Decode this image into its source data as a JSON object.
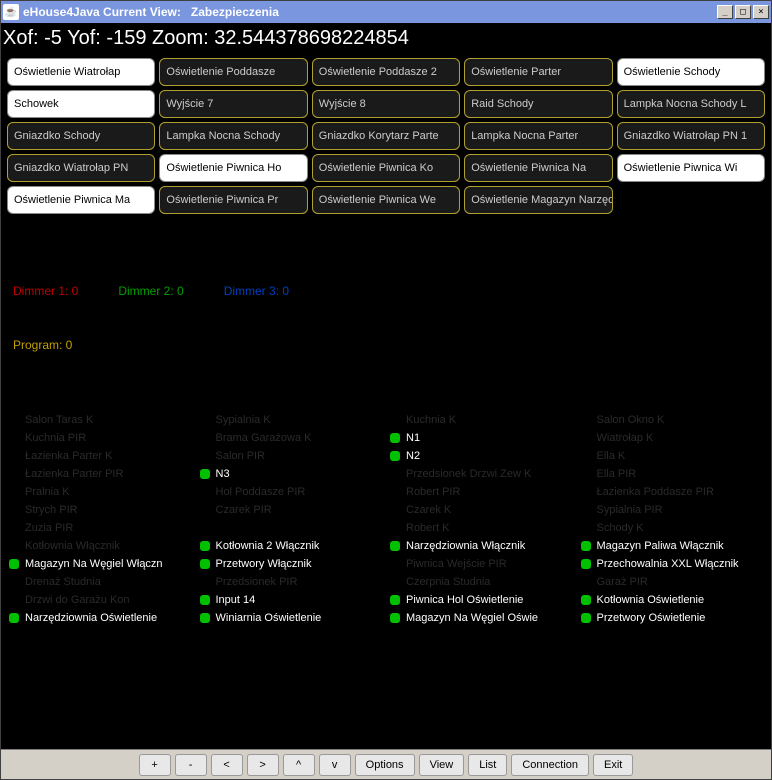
{
  "window": {
    "title_app": "eHouse4Java Current View:",
    "title_view": "Zabezpieczenia",
    "minimize": "_",
    "maximize": "□",
    "close": "×"
  },
  "coords": "Xof: -5 Yof: -159 Zoom: 32.544378698224854",
  "buttons": [
    {
      "label": "Oświetlenie Wiatrołap",
      "on": true
    },
    {
      "label": "Oświetlenie Poddasze",
      "on": false
    },
    {
      "label": "Oświetlenie Poddasze 2",
      "on": false
    },
    {
      "label": "Oświetlenie Parter",
      "on": false
    },
    {
      "label": "Oświetlenie Schody",
      "on": true
    },
    {
      "label": "Schowek",
      "on": true
    },
    {
      "label": "Wyjście 7",
      "on": false
    },
    {
      "label": "Wyjście 8",
      "on": false
    },
    {
      "label": "Raid Schody",
      "on": false
    },
    {
      "label": "Lampka Nocna Schody L",
      "on": false
    },
    {
      "label": "Gniazdko Schody",
      "on": false
    },
    {
      "label": "Lampka Nocna Schody",
      "on": false
    },
    {
      "label": "Gniazdko Korytarz Parte",
      "on": false
    },
    {
      "label": "Lampka Nocna Parter",
      "on": false
    },
    {
      "label": "Gniazdko Wiatrołap PN 1",
      "on": false
    },
    {
      "label": "Gniazdko Wiatrołap PN",
      "on": false
    },
    {
      "label": "Oświetlenie Piwnica Ho",
      "on": true
    },
    {
      "label": "Oświetlenie Piwnica Ko",
      "on": false
    },
    {
      "label": "Oświetlenie Piwnica Na",
      "on": false
    },
    {
      "label": "Oświetlenie Piwnica Wi",
      "on": true
    },
    {
      "label": "Oświetlenie Piwnica Ma",
      "on": true
    },
    {
      "label": "Oświetlenie Piwnica Pr",
      "on": false
    },
    {
      "label": "Oświetlenie Piwnica We",
      "on": false
    },
    {
      "label": "Oświetlenie Magazyn Narzędzia",
      "on": false
    }
  ],
  "dimmers": [
    {
      "label": "Dimmer 1: 0",
      "color": "d-red"
    },
    {
      "label": "Dimmer 2: 0",
      "color": "d-green"
    },
    {
      "label": "Dimmer 3: 0",
      "color": "d-blue"
    }
  ],
  "program": "Program: 0",
  "sensors": {
    "cols": [
      [
        {
          "label": "Salon Taras K",
          "dot": false,
          "dim": true
        },
        {
          "label": "Kuchnia PIR",
          "dot": false,
          "dim": true
        },
        {
          "label": "Łazienka Parter K",
          "dot": false,
          "dim": true
        },
        {
          "label": "Łazienka Parter PIR",
          "dot": false,
          "dim": true
        },
        {
          "label": "Pralnia K",
          "dot": false,
          "dim": true
        },
        {
          "label": "Strych PIR",
          "dot": false,
          "dim": true
        },
        {
          "label": "Zuzia PIR",
          "dot": false,
          "dim": true
        },
        {
          "label": "Kotłownia Włącznik",
          "dot": false,
          "dim": true
        },
        {
          "label": "Magazyn Na Węgiel Włączn",
          "dot": true,
          "dim": false
        },
        {
          "label": "Drenaż Studnia",
          "dot": false,
          "dim": true
        },
        {
          "label": "Drzwi do Garażu Kon",
          "dot": false,
          "dim": true
        },
        {
          "label": "Narzędziownia Oświetlenie",
          "dot": true,
          "dim": false
        }
      ],
      [
        {
          "label": "Sypialnia K",
          "dot": false,
          "dim": true
        },
        {
          "label": "Brama Garażowa K",
          "dot": false,
          "dim": true
        },
        {
          "label": "Salon PIR",
          "dot": false,
          "dim": true
        },
        {
          "label": "N3",
          "dot": true,
          "dim": false
        },
        {
          "label": "Hol Poddasze PIR",
          "dot": false,
          "dim": true
        },
        {
          "label": "Czarek PIR",
          "dot": false,
          "dim": true
        },
        {
          "label": "",
          "dot": false,
          "dim": true
        },
        {
          "label": "Kotłownia 2 Włącznik",
          "dot": true,
          "dim": false
        },
        {
          "label": "Przetwory Włącznik",
          "dot": true,
          "dim": false
        },
        {
          "label": "Przedsionek PIR",
          "dot": false,
          "dim": true
        },
        {
          "label": "Input 14",
          "dot": true,
          "dim": false
        },
        {
          "label": "Winiarnia Oświetlenie",
          "dot": true,
          "dim": false
        }
      ],
      [
        {
          "label": "Kuchnia K",
          "dot": false,
          "dim": true
        },
        {
          "label": "N1",
          "dot": true,
          "dim": false
        },
        {
          "label": "N2",
          "dot": true,
          "dim": false
        },
        {
          "label": "Przedsionek Drzwi Zew K",
          "dot": false,
          "dim": true
        },
        {
          "label": "Robert PIR",
          "dot": false,
          "dim": true
        },
        {
          "label": "Czarek K",
          "dot": false,
          "dim": true
        },
        {
          "label": "Robert K",
          "dot": false,
          "dim": true
        },
        {
          "label": "Narzędziownia Włącznik",
          "dot": true,
          "dim": false
        },
        {
          "label": "Piwnica Wejście PIR",
          "dot": false,
          "dim": true
        },
        {
          "label": "Czerpnia Studnia",
          "dot": false,
          "dim": true
        },
        {
          "label": "Piwnica Hol Oświetlenie",
          "dot": true,
          "dim": false
        },
        {
          "label": "Magazyn Na Węgiel Oświe",
          "dot": true,
          "dim": false
        }
      ],
      [
        {
          "label": "Salon Okno K",
          "dot": false,
          "dim": true
        },
        {
          "label": "Wiatrołap K",
          "dot": false,
          "dim": true
        },
        {
          "label": "Ella K",
          "dot": false,
          "dim": true
        },
        {
          "label": "Ella PIR",
          "dot": false,
          "dim": true
        },
        {
          "label": "Łazienka Poddasze PIR",
          "dot": false,
          "dim": true
        },
        {
          "label": "Sypialnia PIR",
          "dot": false,
          "dim": true
        },
        {
          "label": "Schody K",
          "dot": false,
          "dim": true
        },
        {
          "label": "Magazyn Paliwa Włącznik",
          "dot": true,
          "dim": false
        },
        {
          "label": "Przechowalnia XXL Włącznik",
          "dot": true,
          "dim": false
        },
        {
          "label": "Garaż PIR",
          "dot": false,
          "dim": true
        },
        {
          "label": "Kotłownia Oświetlenie",
          "dot": true,
          "dim": false
        },
        {
          "label": "Przetwory Oświetlenie",
          "dot": true,
          "dim": false
        }
      ]
    ]
  },
  "footer": {
    "plus": "+",
    "minus": "-",
    "left": "<",
    "right": ">",
    "up": "^",
    "down": "v",
    "options": "Options",
    "view": "View",
    "list": "List",
    "connection": "Connection",
    "exit": "Exit"
  }
}
